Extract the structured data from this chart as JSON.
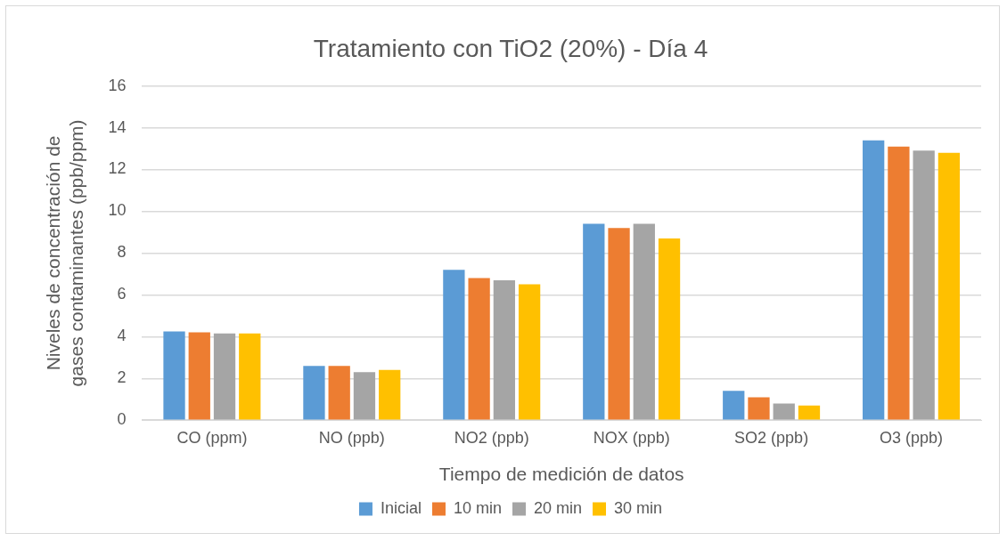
{
  "chart_data": {
    "type": "bar",
    "title": "Tratamiento con TiO2 (20%) - Día 4",
    "xlabel": "Tiempo de medición de datos",
    "ylabel": "Niveles de concentración de gases contaminantes (ppb/ppm)",
    "categories": [
      "CO (ppm)",
      "NO (ppb)",
      "NO2 (ppb)",
      "NOX (ppb)",
      "SO2 (ppb)",
      "O3 (ppb)"
    ],
    "series": [
      {
        "name": "Inicial",
        "color": "#5b9bd5",
        "values": [
          4.25,
          2.6,
          7.2,
          9.4,
          1.4,
          13.4
        ]
      },
      {
        "name": "10 min",
        "color": "#ed7d31",
        "values": [
          4.2,
          2.6,
          6.8,
          9.2,
          1.1,
          13.1
        ]
      },
      {
        "name": "20 min",
        "color": "#a5a5a5",
        "values": [
          4.15,
          2.3,
          6.7,
          9.4,
          0.8,
          12.9
        ]
      },
      {
        "name": "30 min",
        "color": "#ffc000",
        "values": [
          4.15,
          2.4,
          6.5,
          8.7,
          0.7,
          12.8
        ]
      }
    ],
    "ylim": [
      0,
      16
    ],
    "yticks": [
      0,
      2,
      4,
      6,
      8,
      10,
      12,
      14,
      16
    ],
    "grid": "y",
    "legend": "bottom"
  }
}
